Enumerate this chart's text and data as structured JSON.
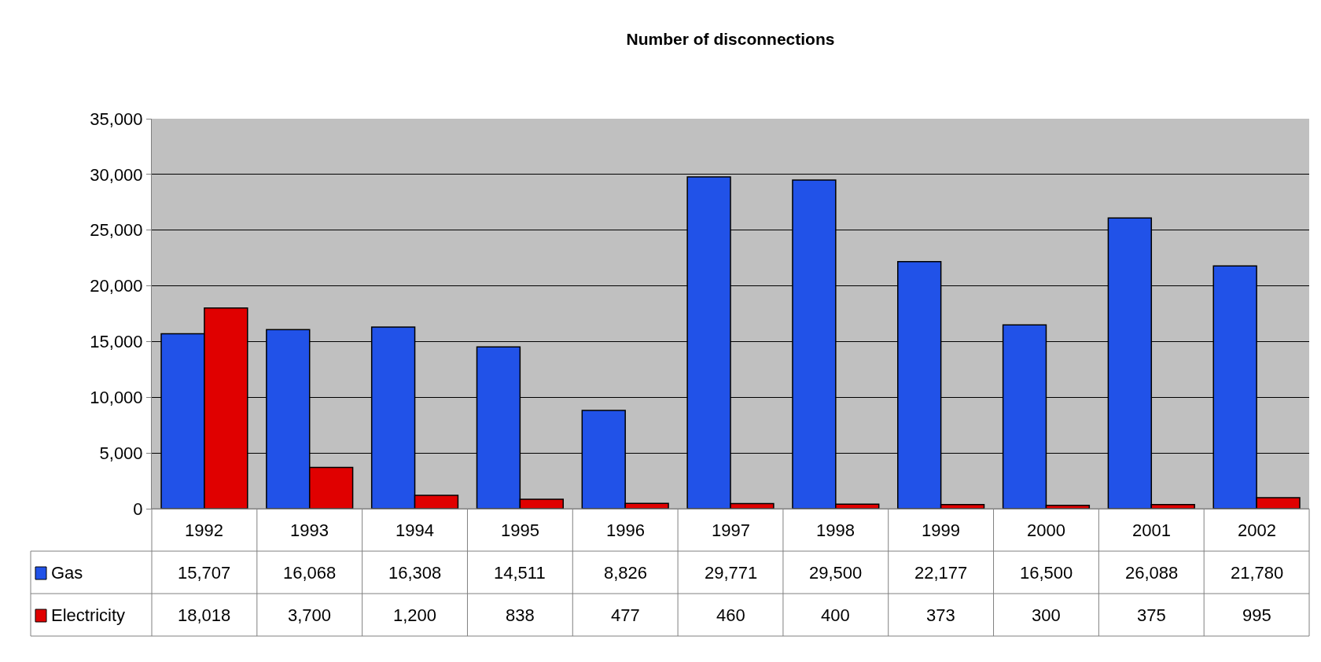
{
  "chart_data": {
    "type": "bar",
    "title": "Number of disconnections",
    "categories": [
      "1992",
      "1993",
      "1994",
      "1995",
      "1996",
      "1997",
      "1998",
      "1999",
      "2000",
      "2001",
      "2002"
    ],
    "series": [
      {
        "name": "Gas",
        "color": "#2152e8",
        "values": [
          15707,
          16068,
          16308,
          14511,
          8826,
          29771,
          29500,
          22177,
          16500,
          26088,
          21780
        ],
        "value_labels": [
          "15,707",
          "16,068",
          "16,308",
          "14,511",
          "8,826",
          "29,771",
          "29,500",
          "22,177",
          "16,500",
          "26,088",
          "21,780"
        ]
      },
      {
        "name": "Electricity",
        "color": "#e00000",
        "values": [
          18018,
          3700,
          1200,
          838,
          477,
          460,
          400,
          373,
          300,
          375,
          995
        ],
        "value_labels": [
          "18,018",
          "3,700",
          "1,200",
          "838",
          "477",
          "460",
          "400",
          "373",
          "300",
          "375",
          "995"
        ]
      }
    ],
    "ylim": [
      0,
      35000
    ],
    "yticks": [
      {
        "value": 0,
        "label": "0"
      },
      {
        "value": 5000,
        "label": "5,000"
      },
      {
        "value": 10000,
        "label": "10,000"
      },
      {
        "value": 15000,
        "label": "15,000"
      },
      {
        "value": 20000,
        "label": "20,000"
      },
      {
        "value": 25000,
        "label": "25,000"
      },
      {
        "value": 30000,
        "label": "30,000"
      },
      {
        "value": 35000,
        "label": "35,000"
      }
    ],
    "grid": "y",
    "legend": "bottom left"
  }
}
